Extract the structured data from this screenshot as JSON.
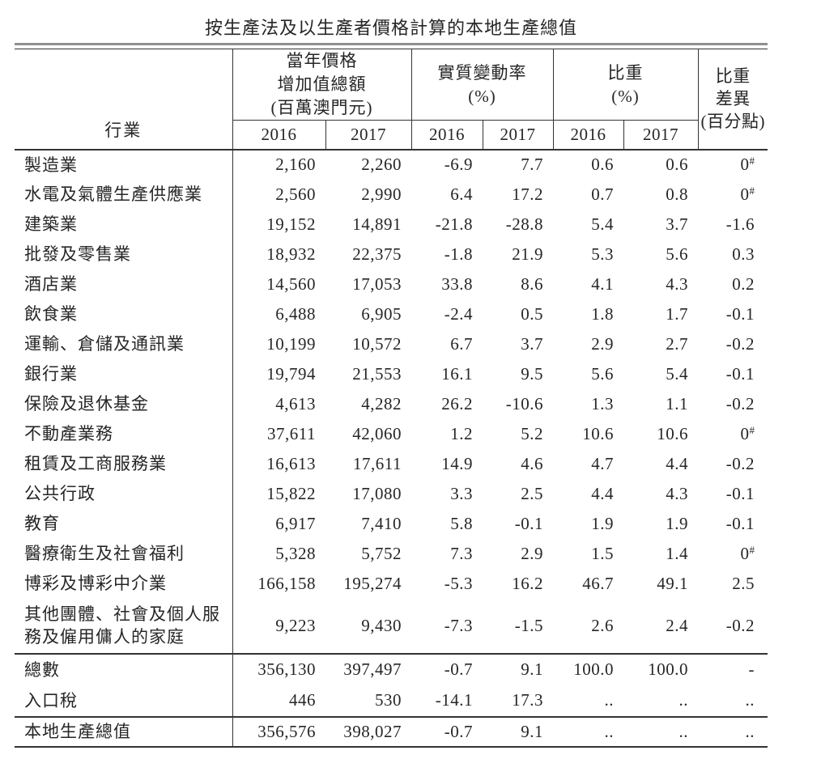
{
  "title": "按生產法及以生產者價格計算的本地生產總值",
  "table": {
    "industry_header": "行業",
    "col_groups": [
      {
        "label": "當年價格\n增加值總額\n(百萬澳門元)",
        "years": [
          "2016",
          "2017"
        ]
      },
      {
        "label": "實質變動率\n(%)",
        "years": [
          "2016",
          "2017"
        ]
      },
      {
        "label": "比重\n(%)",
        "years": [
          "2016",
          "2017"
        ]
      },
      {
        "label": "比重\n差異\n(百分點)"
      }
    ],
    "rows": [
      {
        "industry": "製造業",
        "values": [
          "2,160",
          "2,260",
          "-6.9",
          "7.7",
          "0.6",
          "0.6",
          "0#"
        ]
      },
      {
        "industry": "水電及氣體生產供應業",
        "values": [
          "2,560",
          "2,990",
          "6.4",
          "17.2",
          "0.7",
          "0.8",
          "0#"
        ]
      },
      {
        "industry": "建築業",
        "values": [
          "19,152",
          "14,891",
          "-21.8",
          "-28.8",
          "5.4",
          "3.7",
          "-1.6"
        ]
      },
      {
        "industry": "批發及零售業",
        "values": [
          "18,932",
          "22,375",
          "-1.8",
          "21.9",
          "5.3",
          "5.6",
          "0.3"
        ]
      },
      {
        "industry": "酒店業",
        "values": [
          "14,560",
          "17,053",
          "33.8",
          "8.6",
          "4.1",
          "4.3",
          "0.2"
        ]
      },
      {
        "industry": "飲食業",
        "values": [
          "6,488",
          "6,905",
          "-2.4",
          "0.5",
          "1.8",
          "1.7",
          "-0.1"
        ]
      },
      {
        "industry": "運輸、倉儲及通訊業",
        "values": [
          "10,199",
          "10,572",
          "6.7",
          "3.7",
          "2.9",
          "2.7",
          "-0.2"
        ]
      },
      {
        "industry": "銀行業",
        "values": [
          "19,794",
          "21,553",
          "16.1",
          "9.5",
          "5.6",
          "5.4",
          "-0.1"
        ]
      },
      {
        "industry": "保險及退休基金",
        "values": [
          "4,613",
          "4,282",
          "26.2",
          "-10.6",
          "1.3",
          "1.1",
          "-0.2"
        ]
      },
      {
        "industry": "不動產業務",
        "values": [
          "37,611",
          "42,060",
          "1.2",
          "5.2",
          "10.6",
          "10.6",
          "0#"
        ]
      },
      {
        "industry": "租賃及工商服務業",
        "values": [
          "16,613",
          "17,611",
          "14.9",
          "4.6",
          "4.7",
          "4.4",
          "-0.2"
        ]
      },
      {
        "industry": "公共行政",
        "values": [
          "15,822",
          "17,080",
          "3.3",
          "2.5",
          "4.4",
          "4.3",
          "-0.1"
        ]
      },
      {
        "industry": "教育",
        "values": [
          "6,917",
          "7,410",
          "5.8",
          "-0.1",
          "1.9",
          "1.9",
          "-0.1"
        ]
      },
      {
        "industry": "醫療衛生及社會福利",
        "values": [
          "5,328",
          "5,752",
          "7.3",
          "2.9",
          "1.5",
          "1.4",
          "0#"
        ]
      },
      {
        "industry": "博彩及博彩中介業",
        "values": [
          "166,158",
          "195,274",
          "-5.3",
          "16.2",
          "46.7",
          "49.1",
          "2.5"
        ]
      },
      {
        "industry": "其他團體、社會及個人服\n務及僱用傭人的家庭",
        "values": [
          "9,223",
          "9,430",
          "-7.3",
          "-1.5",
          "2.6",
          "2.4",
          "-0.2"
        ]
      }
    ],
    "summary_rows": [
      {
        "industry": "總數",
        "type": "total",
        "values": [
          "356,130",
          "397,497",
          "-0.7",
          "9.1",
          "100.0",
          "100.0",
          "-"
        ]
      },
      {
        "industry": "入口稅",
        "type": "import",
        "values": [
          "446",
          "530",
          "-14.1",
          "17.3",
          "..",
          "..",
          ".."
        ]
      },
      {
        "industry": "本地生產總值",
        "type": "gdp",
        "values": [
          "356,576",
          "398,027",
          "-0.7",
          "9.1",
          "..",
          "..",
          ".."
        ]
      }
    ]
  }
}
